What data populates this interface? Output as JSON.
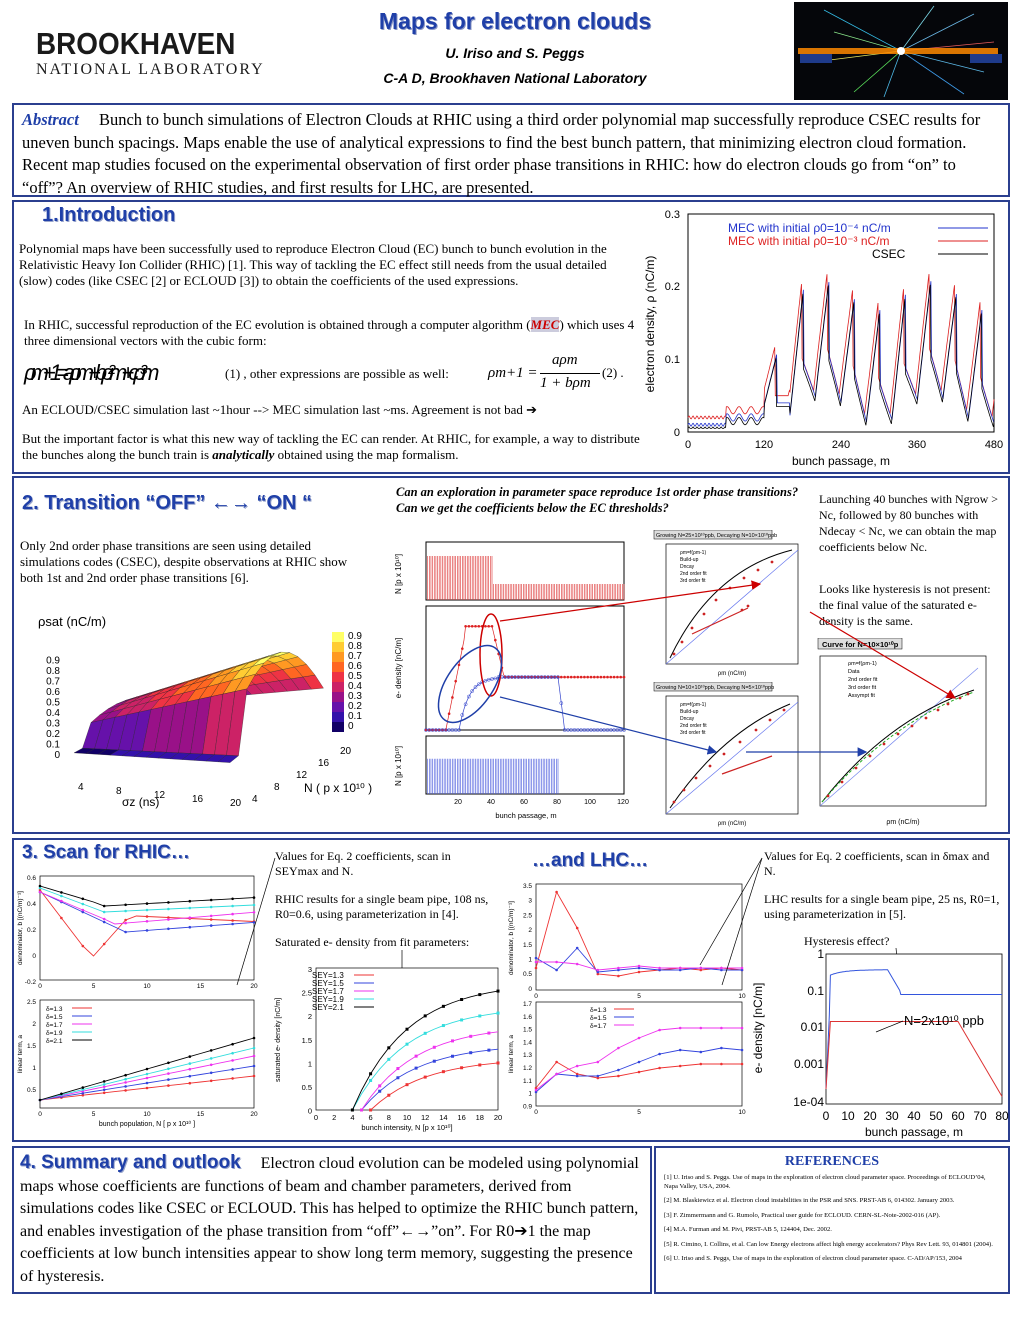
{
  "header": {
    "logo_line1": "BROOKHAVEN",
    "logo_line2": "NATIONAL LABORATORY",
    "title": "Maps for electron clouds",
    "authors": "U. Iriso and S. Peggs",
    "affiliation": "C-A D, Brookhaven National Laboratory"
  },
  "abstract": {
    "label": "Abstract",
    "text": "Bunch to bunch simulations of Electron Clouds at RHIC using a third order polynomial map successfully reproduce CSEC results for uneven bunch spacings. Maps enable the use of analytical expressions to find the best bunch pattern, that minimizing electron cloud formation. Recent map studies focused on the experimental observation of first order phase transitions in RHIC: how do electron clouds go from “on” to “off”? An overview of RHIC studies, and first results for LHC, are presented."
  },
  "intro": {
    "title": "1.Introduction",
    "p1": "Polynomial maps have been successfully used to reproduce Electron Cloud (EC) bunch to bunch evolution in the Relativistic Heavy Ion Collider (RHIC) [1]. This way of tackling the EC effect still needs from the usual detailed (slow) codes (like CSEC [2] or ECLOUD [3]) to obtain the coefficients of the used expressions.",
    "p2a": "In RHIC, successful reproduction of the EC evolution is obtained through a computer algorithm (",
    "p2_mec": "MEC",
    "p2b": ") which uses 4 three dimensional vectors with the cubic form:",
    "eq_note": "(1) , other expressions are possible as well:",
    "eq2_num": "aρm",
    "eq2_lhs": "ρm+1 =",
    "eq2_den": "1 + bρm",
    "eq2_label": "(2) .",
    "p3": "An ECLOUD/CSEC simulation last ~1hour --> MEC simulation last ~ms. Agreement is not bad ➔",
    "p4a": "But the important factor is what this new way of tackling the EC can render. At RHIC, for example,  a way to distribute the bunches along the bunch train is ",
    "p4_em": "analytically",
    "p4b": " obtained using the map formalism."
  },
  "transition": {
    "title": "2. Transition “OFF” ←→ “ON “",
    "question": "Can an exploration in parameter space reproduce 1st order phase transitions? Can we get the coefficients below the EC thresholds?",
    "p1": "Only 2nd order phase transitions are seen using detailed simulations codes (CSEC), despite observations at RHIC show both 1st and 2nd order phase transitions [6].",
    "right1": "Launching 40 bunches with Ngrow > Nc, followed by 80 bunches with Ndecay < Nc, we can obtain the map coefficients below Nc.",
    "right2": "Looks like hysteresis is not present: the final value of the saturated e- density is the same."
  },
  "scan": {
    "title": "3. Scan for RHIC…",
    "lhc_title": "…and LHC…",
    "n1": "Values for Eq. 2 coefficients, scan in SEYmax and N.",
    "n2": "RHIC results for a single beam pipe, 108 ns, R0=0.6, using parameterization in [4].",
    "n3": "Saturated e- density from fit parameters:",
    "n4": "Values for Eq. 2 coefficients, scan in δmax and N.",
    "n5": "LHC results for a single beam pipe, 25 ns, R0=1, using parameterization in [5].",
    "n6": "Hysteresis effect?",
    "n7": "N=2x10¹⁰ ppb"
  },
  "summary": {
    "title": "4. Summary and outlook",
    "text": "Electron cloud evolution can be modeled using polynomial maps whose coefficients are functions of beam and chamber parameters, derived from simulations codes like CSEC or ECLOUD. This has helped to optimize the RHIC bunch pattern, and enables investigation of the phase transition from “off”←→”on”. For R0➔1 the map coefficients at low bunch intensities appear to show long term memory, suggesting the presence of hysteresis."
  },
  "references": {
    "title": "REFERENCES",
    "items": [
      "[1] U. Iriso and S. Peggs. Use of maps in the exploration of electron cloud parameter space. Proceedings of ECLOUD’04, Napa Valley, USA, 2004.",
      "[2] M. Blaskiewicz et al. Electron cloud instabilities in the PSR and SNS. PRST-AB 6, 014302. January 2003.",
      "[3] F. Zimmermann and G. Rumolo, Practical user guide for ECLOUD. CERN-SL-Note-2002-016 (AP).",
      "[4] M.A. Furman and M. Pivi, PRST-AB 5, 124404, Dec. 2002.",
      "[5] R. Cimino, I. Collins, et al. Can low Energy electrons affect high energy accelerators? Phys Rev Lett. 93, 014801 (2004).",
      "[6] U. Iriso and S. Peggs, Use of maps in the exploration of electron cloud parameter space. C-AD/AP/153, 2004"
    ]
  },
  "plots": {
    "intro_legend": [
      "MEC with initial ρ0=10⁻⁴ nC/m",
      "MEC with initial ρ0=10⁻³ nC/m",
      "CSEC"
    ],
    "intro_xlabel": "bunch passage, m",
    "intro_ylabel": "electron density, ρ (nC/m)",
    "intro_xticks": [
      "0",
      "120",
      "240",
      "360",
      "480"
    ],
    "intro_yticks": [
      "0",
      "0.1",
      "0.2",
      "0.3"
    ],
    "surf_title": "ρsat (nC/m)",
    "surf_xlabel": "σz (ns)",
    "surf_ylabel": "N ( p x 10¹⁰ )",
    "surf_colorbar": [
      "0.9",
      "0.8",
      "0.7",
      "0.6",
      "0.5",
      "0.4",
      "0.3",
      "0.2",
      "0.1",
      "0"
    ],
    "trans_ylabel_top": "N [p x 10¹⁰]",
    "trans_ylabel_mid": "e- density [nC/m]",
    "trans_ylabel_bot": "N [p x 10¹⁰]",
    "trans_xlabel": "bunch passage, m",
    "trans_xticks": [
      "20",
      "40",
      "60",
      "80",
      "100",
      "120"
    ],
    "small_title1": "Growing N=25×10¹⁰ppb, Decaying N=10×10¹⁰ppb",
    "small_title2": "Growing N=10×10¹⁰ppb, Decaying N=5×10¹⁰ppb",
    "curve_title": "Curve for N=10×10¹⁰p",
    "small_legend": [
      "ρm=f(ρm-1)",
      "Build-up",
      "Dncay",
      "2nd order fit",
      "3rd order fit"
    ],
    "curve_legend": [
      "ρm=f(ρm-1)",
      "Data",
      "2nd order fit",
      "3rd order fit",
      "Assympt fit"
    ],
    "scan_delta_legend": [
      "δ=1.3",
      "δ=1.5",
      "δ=1.7",
      "δ=1.9",
      "δ=2.1"
    ],
    "scan_sey_legend": [
      "SEY=1.3",
      "SEY=1.5",
      "SEY=1.7",
      "SEY=1.9",
      "SEY=2.1"
    ],
    "lhc_legend": [
      "δ=1.3",
      "δ=1.5",
      "δ=1.7"
    ],
    "scan_xlabel": "bunch population, N [ p x 10¹⁰ ]",
    "scan_ylabel_top": "denominator, b [(nC/m)⁻¹]",
    "scan_ylabel_bot": "linear term, a",
    "sat_xlabel": "bunch intensity, N [p x 10¹⁰]",
    "sat_ylabel": "saturated e- density [nC/m]",
    "hyst_xlabel": "bunch passage, m",
    "hyst_ylabel": "e- density [nC/m]"
  }
}
